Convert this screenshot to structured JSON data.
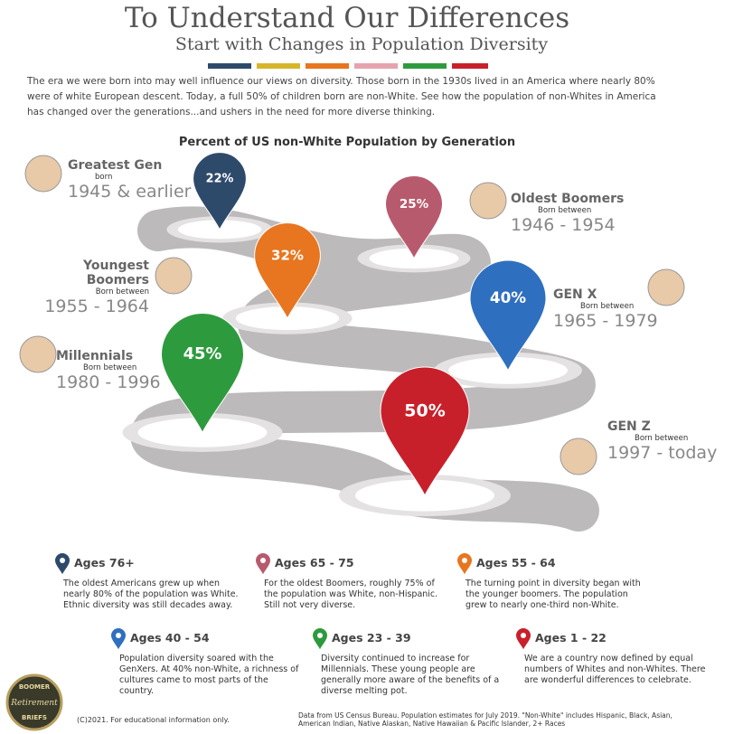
{
  "header": {
    "title": "To Understand Our Differences",
    "subtitle": "Start with Changes in Population Diversity",
    "intro": "The era we were born into may well influence our views on diversity.  Those born in the 1930s lived in an America where nearly 80% were of white European descent. Today, a full 50% of children born are non-White.  See how the population of non-Whites in America has changed over the generations...and ushers in the need for more diverse thinking."
  },
  "chart_data": {
    "type": "pin",
    "title": "Percent of US non-White Population by Generation",
    "categories": [
      "Greatest Gen",
      "Oldest Boomers",
      "Youngest Boomers",
      "GEN X",
      "Millennials",
      "GEN Z"
    ],
    "values": [
      22,
      25,
      32,
      40,
      45,
      50
    ],
    "value_labels": [
      "22%",
      "25%",
      "32%",
      "40%",
      "45%",
      "50%"
    ],
    "colors": [
      "#2e4a6b",
      "#b85a6e",
      "#e8751f",
      "#2f6fbf",
      "#2e9a3e",
      "#c8202b"
    ]
  },
  "generations": [
    {
      "born": "born",
      "years": "1945 & earlier"
    },
    {
      "born": "Born between",
      "years": "1946 - 1954"
    },
    {
      "born": "Born between",
      "years": "1955 - 1964"
    },
    {
      "born": "Born between",
      "years": "1965 - 1979"
    },
    {
      "born": "Born between",
      "years": "1980 - 1996"
    },
    {
      "born": "Born between",
      "years": "1997 - today"
    }
  ],
  "cards": [
    {
      "ages": "Ages 76+",
      "text": "The oldest Americans grew up when nearly 80% of the population was White. Ethnic diversity was still decades away."
    },
    {
      "ages": "Ages 65 - 75",
      "text": "For the oldest Boomers, roughly 75% of the population was White, non-Hispanic.  Still not very diverse."
    },
    {
      "ages": "Ages 55 - 64",
      "text": "The turning point in diversity began with the younger boomers. The population grew to nearly one-third non-White."
    },
    {
      "ages": "Ages 40 - 54",
      "text": "Population diversity soared with the GenXers. At 40% non-White, a richness of cultures came to most parts of the country."
    },
    {
      "ages": "Ages 23 - 39",
      "text": "Diversity continued to increase for Millennials. These young people are generally more aware of the benefits of a diverse melting pot."
    },
    {
      "ages": "Ages 1 - 22",
      "text": "We are a country now defined by equal numbers of Whites and non-Whites. There are wonderful differences to celebrate."
    }
  ],
  "footer": {
    "logo_top": "BOOMER",
    "logo_mid": "Retirement",
    "logo_bottom": "BRIEFS",
    "copyright": "(C)2021.  For educational information only.",
    "source": "Data from US Census Bureau. Population estimates for July 2019.  \"Non-White\" includes Hispanic, Black, Asian, American Indian, Native Alaskan, Native Hawaiian & Pacific Islander, 2+ Races"
  }
}
